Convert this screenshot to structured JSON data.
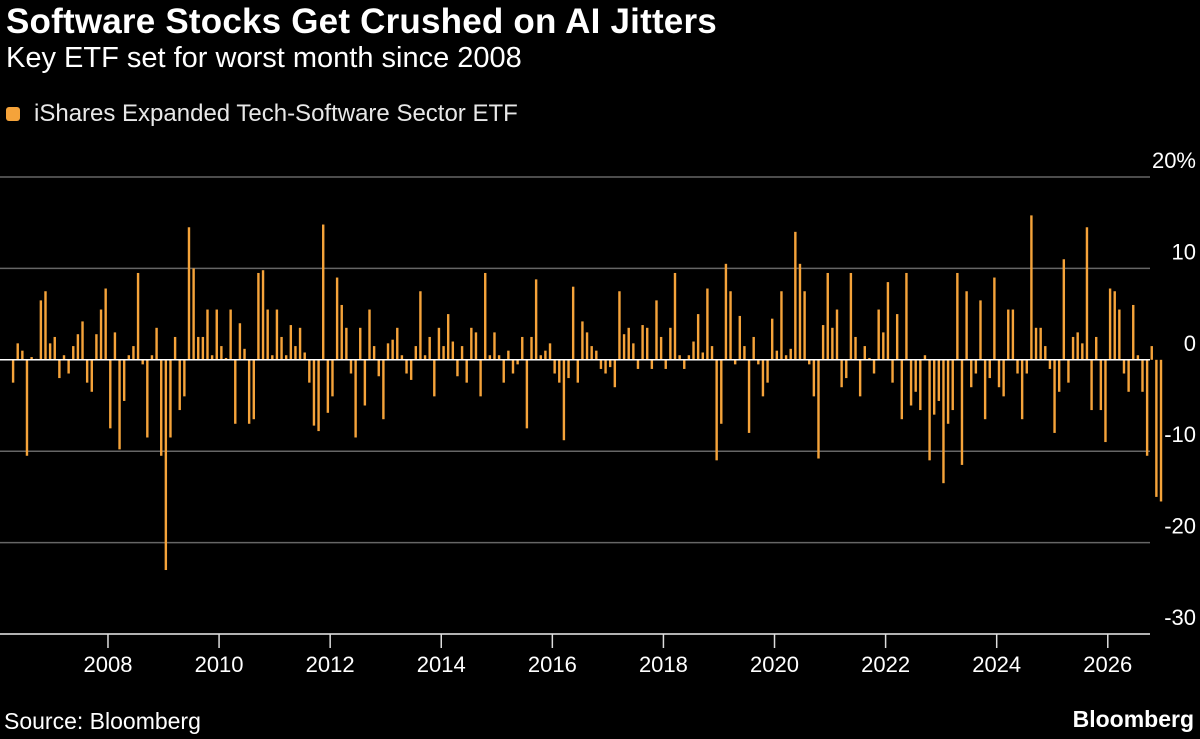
{
  "title": "Software Stocks Get Crushed on AI Jitters",
  "subtitle": "Key ETF set for worst month since 2008",
  "source": "Source: Bloomberg",
  "brand": "Bloomberg",
  "chart_data": {
    "type": "bar",
    "title": "Software Stocks Get Crushed on AI Jitters",
    "subtitle": "Key ETF set for worst month since 2008",
    "bar_color": "#f5a33a",
    "grid_color": "#666666",
    "zero_line_color": "#ffffff",
    "legend": [
      "iShares Expanded Tech-Software Sector ETF"
    ],
    "legend_position": "top-left",
    "yunit": "%",
    "ylim": [
      -30,
      20
    ],
    "yticks": [
      20,
      10,
      0,
      -10,
      -20,
      -30
    ],
    "ytick_labels": [
      "20%",
      "10",
      "0",
      "-10",
      "-20",
      "-30"
    ],
    "xlim": [
      2006.2,
      2026.4
    ],
    "xticks": [
      2008,
      2010,
      2012,
      2014,
      2016,
      2018,
      2020,
      2022,
      2024,
      2026
    ],
    "xtick_labels": [
      "2008",
      "2010",
      "2012",
      "2014",
      "2016",
      "2018",
      "2020",
      "2022",
      "2024",
      "2026"
    ],
    "series": [
      {
        "name": "iShares Expanded Tech-Software Sector ETF",
        "start": "2006-04",
        "frequency": "monthly",
        "values": [
          -2.5,
          1.8,
          1.0,
          -10.5,
          0.3,
          0.1,
          6.5,
          7.5,
          1.8,
          2.5,
          -2.0,
          0.5,
          -1.5,
          1.5,
          2.8,
          4.2,
          -2.5,
          -3.5,
          2.8,
          5.5,
          7.8,
          -7.5,
          3.0,
          -9.8,
          -4.5,
          0.5,
          1.5,
          9.5,
          -0.5,
          -8.5,
          0.5,
          3.5,
          -10.5,
          -23.0,
          -8.5,
          2.5,
          -5.5,
          -4.0,
          14.5,
          10.0,
          2.5,
          2.5,
          5.5,
          0.5,
          5.5,
          1.5,
          0.2,
          5.5,
          -7.0,
          4.0,
          1.2,
          -7.0,
          -6.5,
          9.5,
          9.8,
          5.5,
          0.5,
          5.5,
          2.5,
          0.5,
          3.8,
          1.5,
          3.5,
          0.8,
          -2.5,
          -7.2,
          -7.8,
          14.8,
          -5.8,
          -4.0,
          9.0,
          6.0,
          3.5,
          -1.5,
          -8.5,
          3.5,
          -5.0,
          5.5,
          1.5,
          -1.8,
          -6.5,
          1.8,
          2.2,
          3.5,
          0.5,
          -1.5,
          -2.2,
          1.5,
          7.5,
          0.5,
          2.5,
          -4.0,
          3.5,
          1.5,
          5.0,
          2.0,
          -1.8,
          1.5,
          -2.5,
          3.5,
          3.0,
          -4.0,
          9.5,
          0.5,
          3.0,
          0.5,
          -2.5,
          1.0,
          -1.5,
          -0.5,
          2.5,
          -7.5,
          2.5,
          8.8,
          0.5,
          1.0,
          1.8,
          -1.5,
          -2.5,
          -8.8,
          -2.0,
          8.0,
          -2.5,
          4.2,
          3.0,
          1.5,
          1.0,
          -1.0,
          -1.5,
          -0.8,
          -3.0,
          7.5,
          2.8,
          3.5,
          1.8,
          -1.0,
          3.8,
          3.5,
          -1.0,
          6.5,
          2.5,
          -1.0,
          3.5,
          9.5,
          0.5,
          -1.0,
          0.5,
          2.0,
          5.0,
          0.8,
          7.8,
          1.5,
          -11.0,
          -7.0,
          10.5,
          7.5,
          -0.5,
          4.8,
          1.5,
          -8.0,
          2.5,
          -0.5,
          -4.0,
          -2.5,
          4.5,
          1.0,
          7.5,
          0.5,
          1.2,
          14.0,
          10.5,
          7.5,
          -0.5,
          -4.0,
          -10.8,
          3.8,
          9.5,
          3.5,
          5.5,
          -3.0,
          -2.0,
          9.5,
          2.5,
          -4.0,
          1.5,
          0.2,
          -1.5,
          5.5,
          3.0,
          8.5,
          -2.5,
          5.0,
          -6.5,
          9.5,
          -5.0,
          -3.5,
          -5.5,
          0.5,
          -11.0,
          -6.0,
          -4.5,
          -13.5,
          -7.0,
          -5.5,
          9.5,
          -11.5,
          7.5,
          -3.0,
          -1.5,
          6.5,
          -6.5,
          -2.0,
          9.0,
          -3.0,
          -4.0,
          5.5,
          5.5,
          -1.5,
          -6.5,
          -1.5,
          15.8,
          3.5,
          3.5,
          1.5,
          -1.0,
          -8.0,
          -3.5,
          11.0,
          -2.5,
          2.5,
          3.0,
          1.8,
          14.5,
          -5.5,
          2.5,
          -5.5,
          -9.0,
          7.8,
          7.5,
          5.5,
          -1.5,
          -3.5,
          6.0,
          0.5,
          -3.5,
          -10.5,
          1.5,
          -15.0,
          -15.5
        ]
      }
    ]
  }
}
